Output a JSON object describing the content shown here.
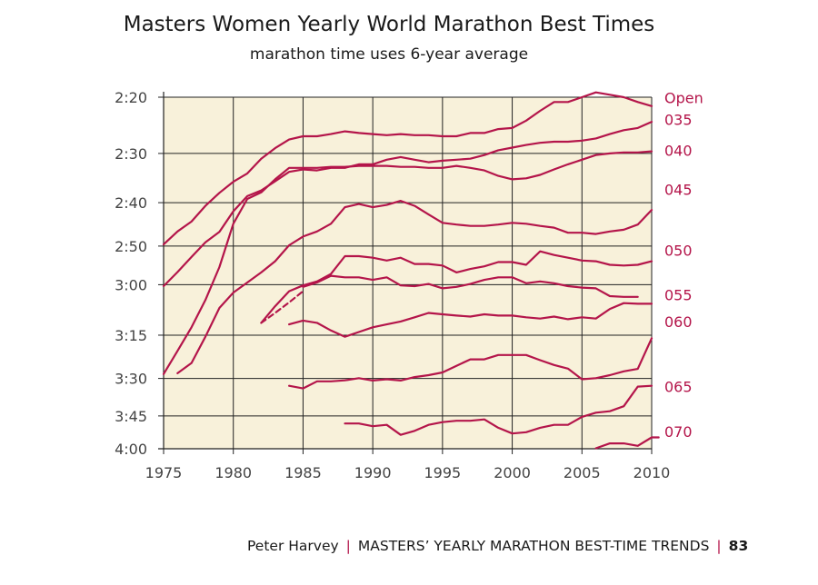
{
  "title": "Masters Women Yearly World Marathon Best Times",
  "subtitle": "marathon time uses 6-year average",
  "footer": {
    "author": "Peter Harvey",
    "sep": "|",
    "text": "MASTERS’ YEARLY MARATHON BEST-TIME TRENDS",
    "page": "83"
  },
  "colors": {
    "plot_bg": "#f8f1da",
    "line": "#b4154a",
    "grid": "#222222"
  },
  "chart_data": {
    "type": "line",
    "title": "Masters Women Yearly World Marathon Best Times",
    "subtitle": "marathon time uses 6-year average",
    "xlabel": "",
    "ylabel": "",
    "xlim": [
      1975,
      2010
    ],
    "y_scale": "reciprocal (speed)",
    "y_unit": "marathon time (h:mm)",
    "grid": true,
    "xticks": [
      "1975",
      "1980",
      "1985",
      "1990",
      "1995",
      "2000",
      "2005",
      "2010"
    ],
    "yticks": [
      {
        "label": "2:20",
        "min": 140
      },
      {
        "label": "2:30",
        "min": 150
      },
      {
        "label": "2:40",
        "min": 160
      },
      {
        "label": "2:50",
        "min": 170
      },
      {
        "label": "3:00",
        "min": 180
      },
      {
        "label": "3:15",
        "min": 195
      },
      {
        "label": "3:30",
        "min": 210
      },
      {
        "label": "3:45",
        "min": 225
      },
      {
        "label": "4:00",
        "min": 240
      }
    ],
    "series": [
      {
        "name": "Open",
        "label_min": 140.1,
        "points": [
          [
            1975,
            169.6
          ],
          [
            1976,
            166.5
          ],
          [
            1977,
            164.2
          ],
          [
            1978,
            160.7
          ],
          [
            1979,
            157.9
          ],
          [
            1980,
            155.6
          ],
          [
            1981,
            153.9
          ],
          [
            1982,
            151.0
          ],
          [
            1983,
            149.0
          ],
          [
            1984,
            147.4
          ],
          [
            1985,
            146.8
          ],
          [
            1986,
            146.8
          ],
          [
            1987,
            146.4
          ],
          [
            1988,
            145.9
          ],
          [
            1989,
            146.2
          ],
          [
            1990,
            146.4
          ],
          [
            1991,
            146.6
          ],
          [
            1992,
            146.4
          ],
          [
            1993,
            146.6
          ],
          [
            1994,
            146.6
          ],
          [
            1995,
            146.8
          ],
          [
            1996,
            146.8
          ],
          [
            1997,
            146.2
          ],
          [
            1998,
            146.2
          ],
          [
            1999,
            145.5
          ],
          [
            2000,
            145.3
          ],
          [
            2001,
            144.0
          ],
          [
            2002,
            142.3
          ],
          [
            2003,
            140.8
          ],
          [
            2004,
            140.8
          ],
          [
            2005,
            140.0
          ],
          [
            2006,
            139.2
          ],
          [
            2007,
            139.6
          ],
          [
            2008,
            140.0
          ],
          [
            2009,
            140.8
          ],
          [
            2010,
            141.5
          ]
        ]
      },
      {
        "name": "035",
        "label_min": 143.8,
        "points": [
          [
            1975,
            180.4
          ],
          [
            1976,
            176.6
          ],
          [
            1977,
            172.7
          ],
          [
            1978,
            169.1
          ],
          [
            1979,
            166.6
          ],
          [
            1980,
            161.9
          ],
          [
            1981,
            158.6
          ],
          [
            1982,
            157.4
          ],
          [
            1983,
            155.5
          ],
          [
            1984,
            153.6
          ],
          [
            1985,
            153.1
          ],
          [
            1986,
            153.3
          ],
          [
            1987,
            152.8
          ],
          [
            1988,
            152.8
          ],
          [
            1989,
            152.1
          ],
          [
            1990,
            152.1
          ],
          [
            1991,
            151.2
          ],
          [
            1992,
            150.7
          ],
          [
            1993,
            151.2
          ],
          [
            1994,
            151.7
          ],
          [
            1995,
            151.4
          ],
          [
            1996,
            151.2
          ],
          [
            1997,
            151.0
          ],
          [
            1998,
            150.3
          ],
          [
            1999,
            149.4
          ],
          [
            2000,
            148.9
          ],
          [
            2001,
            148.4
          ],
          [
            2002,
            148.0
          ],
          [
            2003,
            147.8
          ],
          [
            2004,
            147.8
          ],
          [
            2005,
            147.6
          ],
          [
            2006,
            147.2
          ],
          [
            2007,
            146.4
          ],
          [
            2008,
            145.7
          ],
          [
            2009,
            145.3
          ],
          [
            2010,
            144.2
          ]
        ]
      },
      {
        "name": "040",
        "label_min": 149.4,
        "points": [
          [
            1975,
            208.4
          ],
          [
            1976,
            200.2
          ],
          [
            1977,
            192.5
          ],
          [
            1978,
            184.3
          ],
          [
            1979,
            175.3
          ],
          [
            1980,
            164.7
          ],
          [
            1981,
            159.2
          ],
          [
            1982,
            157.8
          ],
          [
            1983,
            155.1
          ],
          [
            1984,
            152.8
          ],
          [
            1985,
            152.8
          ],
          [
            1986,
            152.8
          ],
          [
            1987,
            152.6
          ],
          [
            1988,
            152.6
          ],
          [
            1989,
            152.4
          ],
          [
            1990,
            152.4
          ],
          [
            1991,
            152.4
          ],
          [
            1992,
            152.6
          ],
          [
            1993,
            152.6
          ],
          [
            1994,
            152.8
          ],
          [
            1995,
            152.8
          ],
          [
            1996,
            152.4
          ],
          [
            1997,
            152.8
          ],
          [
            1998,
            153.3
          ],
          [
            1999,
            154.4
          ],
          [
            2000,
            155.1
          ],
          [
            2001,
            154.9
          ],
          [
            2002,
            154.2
          ],
          [
            2003,
            153.1
          ],
          [
            2004,
            152.1
          ],
          [
            2005,
            151.2
          ],
          [
            2006,
            150.3
          ],
          [
            2007,
            150.0
          ],
          [
            2008,
            149.8
          ],
          [
            2009,
            149.8
          ],
          [
            2010,
            149.6
          ]
        ]
      },
      {
        "name": "045",
        "label_min": 157.2,
        "points": [
          [
            1976,
            208.1
          ],
          [
            1977,
            204.4
          ],
          [
            1978,
            195.5
          ],
          [
            1979,
            186.6
          ],
          [
            1980,
            182.2
          ],
          [
            1981,
            179.4
          ],
          [
            1982,
            176.7
          ],
          [
            1983,
            173.8
          ],
          [
            1984,
            169.8
          ],
          [
            1985,
            167.7
          ],
          [
            1986,
            166.5
          ],
          [
            1987,
            164.7
          ],
          [
            1988,
            161.0
          ],
          [
            1989,
            160.3
          ],
          [
            1990,
            161.0
          ],
          [
            1991,
            160.5
          ],
          [
            1992,
            159.6
          ],
          [
            1993,
            160.7
          ],
          [
            1994,
            162.6
          ],
          [
            1995,
            164.5
          ],
          [
            1996,
            164.9
          ],
          [
            1997,
            165.2
          ],
          [
            1998,
            165.2
          ],
          [
            1999,
            164.9
          ],
          [
            2000,
            164.5
          ],
          [
            2001,
            164.7
          ],
          [
            2002,
            165.2
          ],
          [
            2003,
            165.6
          ],
          [
            2004,
            166.8
          ],
          [
            2005,
            166.8
          ],
          [
            2006,
            167.1
          ],
          [
            2007,
            166.5
          ],
          [
            2008,
            166.1
          ],
          [
            2009,
            164.9
          ],
          [
            2010,
            161.6
          ]
        ]
      },
      {
        "name": "050",
        "label_min": 171.0,
        "points": [
          [
            1982,
            191.1
          ],
          [
            1983,
            186.1
          ],
          [
            1984,
            181.8
          ],
          [
            1985,
            180.2
          ],
          [
            1986,
            179.1
          ],
          [
            1987,
            177.1
          ],
          [
            1988,
            172.5
          ],
          [
            1989,
            172.5
          ],
          [
            1990,
            172.9
          ],
          [
            1991,
            173.6
          ],
          [
            1992,
            172.9
          ],
          [
            1993,
            174.5
          ],
          [
            1994,
            174.5
          ],
          [
            1995,
            174.9
          ],
          [
            1996,
            176.7
          ],
          [
            1997,
            175.8
          ],
          [
            1998,
            175.1
          ],
          [
            1999,
            174.0
          ],
          [
            2000,
            174.0
          ],
          [
            2001,
            174.7
          ],
          [
            2002,
            171.3
          ],
          [
            2003,
            172.2
          ],
          [
            2004,
            172.9
          ],
          [
            2005,
            173.6
          ],
          [
            2006,
            173.8
          ],
          [
            2007,
            174.7
          ],
          [
            2008,
            174.9
          ],
          [
            2009,
            174.7
          ],
          [
            2010,
            173.8
          ]
        ]
      },
      {
        "name": "055",
        "label_min": 182.8,
        "points": [
          [
            1985,
            180.6
          ],
          [
            1986,
            179.4
          ],
          [
            1987,
            177.6
          ],
          [
            1988,
            178.0
          ],
          [
            1989,
            178.0
          ],
          [
            1990,
            178.7
          ],
          [
            1991,
            178.0
          ],
          [
            1992,
            180.2
          ],
          [
            1993,
            180.4
          ],
          [
            1994,
            179.8
          ],
          [
            1995,
            181.0
          ],
          [
            1996,
            180.6
          ],
          [
            1997,
            179.8
          ],
          [
            1998,
            178.7
          ],
          [
            1999,
            178.0
          ],
          [
            2000,
            178.0
          ],
          [
            2001,
            179.6
          ],
          [
            2002,
            179.1
          ],
          [
            2003,
            179.6
          ],
          [
            2004,
            180.4
          ],
          [
            2005,
            180.8
          ],
          [
            2006,
            181.0
          ],
          [
            2007,
            183.2
          ],
          [
            2008,
            183.4
          ],
          [
            2009,
            183.4
          ]
        ]
      },
      {
        "name": "055 trend (dashed)",
        "dashed": true,
        "points": [
          [
            1982,
            191.1
          ],
          [
            1983,
            188.1
          ],
          [
            1984,
            185.0
          ],
          [
            1985,
            181.8
          ]
        ]
      },
      {
        "name": "060",
        "label_min": 190.7,
        "points": [
          [
            1984,
            191.6
          ],
          [
            1985,
            190.4
          ],
          [
            1986,
            191.1
          ],
          [
            1987,
            193.5
          ],
          [
            1988,
            195.5
          ],
          [
            1989,
            194.0
          ],
          [
            1990,
            192.5
          ],
          [
            1991,
            191.6
          ],
          [
            1992,
            190.7
          ],
          [
            1993,
            189.4
          ],
          [
            1994,
            188.1
          ],
          [
            1995,
            188.5
          ],
          [
            1996,
            188.9
          ],
          [
            1997,
            189.2
          ],
          [
            1998,
            188.5
          ],
          [
            1999,
            188.9
          ],
          [
            2000,
            188.9
          ],
          [
            2001,
            189.4
          ],
          [
            2002,
            189.8
          ],
          [
            2003,
            189.2
          ],
          [
            2004,
            190.0
          ],
          [
            2005,
            189.4
          ],
          [
            2006,
            189.8
          ],
          [
            2007,
            186.9
          ],
          [
            2008,
            185.2
          ],
          [
            2009,
            185.4
          ],
          [
            2010,
            185.4
          ]
        ]
      },
      {
        "name": "065",
        "label_min": 213.1,
        "points": [
          [
            1984,
            212.8
          ],
          [
            1985,
            213.8
          ],
          [
            1986,
            211.1
          ],
          [
            1987,
            211.1
          ],
          [
            1988,
            210.7
          ],
          [
            1989,
            209.9
          ],
          [
            1990,
            210.8
          ],
          [
            1991,
            210.3
          ],
          [
            1992,
            210.8
          ],
          [
            1993,
            209.5
          ],
          [
            1994,
            208.8
          ],
          [
            1995,
            207.8
          ],
          [
            1996,
            205.4
          ],
          [
            1997,
            203.1
          ],
          [
            1998,
            203.1
          ],
          [
            1999,
            201.6
          ],
          [
            2000,
            201.6
          ],
          [
            2001,
            201.6
          ],
          [
            2002,
            203.4
          ],
          [
            2003,
            205.1
          ],
          [
            2004,
            206.4
          ],
          [
            2005,
            210.3
          ],
          [
            2006,
            209.9
          ],
          [
            2007,
            208.8
          ],
          [
            2008,
            207.4
          ],
          [
            2009,
            206.5
          ],
          [
            2010,
            196.0
          ]
        ]
      },
      {
        "name": "070",
        "label_min": 231.9,
        "points": [
          [
            1988,
            228.3
          ],
          [
            1989,
            228.3
          ],
          [
            1990,
            229.5
          ],
          [
            1991,
            228.9
          ],
          [
            1992,
            233.4
          ],
          [
            1993,
            231.6
          ],
          [
            1994,
            228.9
          ],
          [
            1995,
            227.7
          ],
          [
            1996,
            227.1
          ],
          [
            1997,
            227.1
          ],
          [
            1998,
            226.5
          ],
          [
            1999,
            230.2
          ],
          [
            2000,
            232.8
          ],
          [
            2001,
            232.2
          ],
          [
            2002,
            230.2
          ],
          [
            2003,
            228.9
          ],
          [
            2004,
            228.9
          ],
          [
            2005,
            225.4
          ],
          [
            2006,
            223.6
          ],
          [
            2007,
            223.0
          ],
          [
            2008,
            220.9
          ],
          [
            2009,
            213.1
          ],
          [
            2010,
            212.8
          ]
        ]
      },
      {
        "name": "070 (lower)",
        "points": [
          [
            2006,
            239.8
          ],
          [
            2007,
            237.4
          ],
          [
            2008,
            237.4
          ],
          [
            2009,
            238.6
          ],
          [
            2010,
            234.6
          ],
          [
            2010.5,
            234.6
          ]
        ]
      }
    ]
  }
}
